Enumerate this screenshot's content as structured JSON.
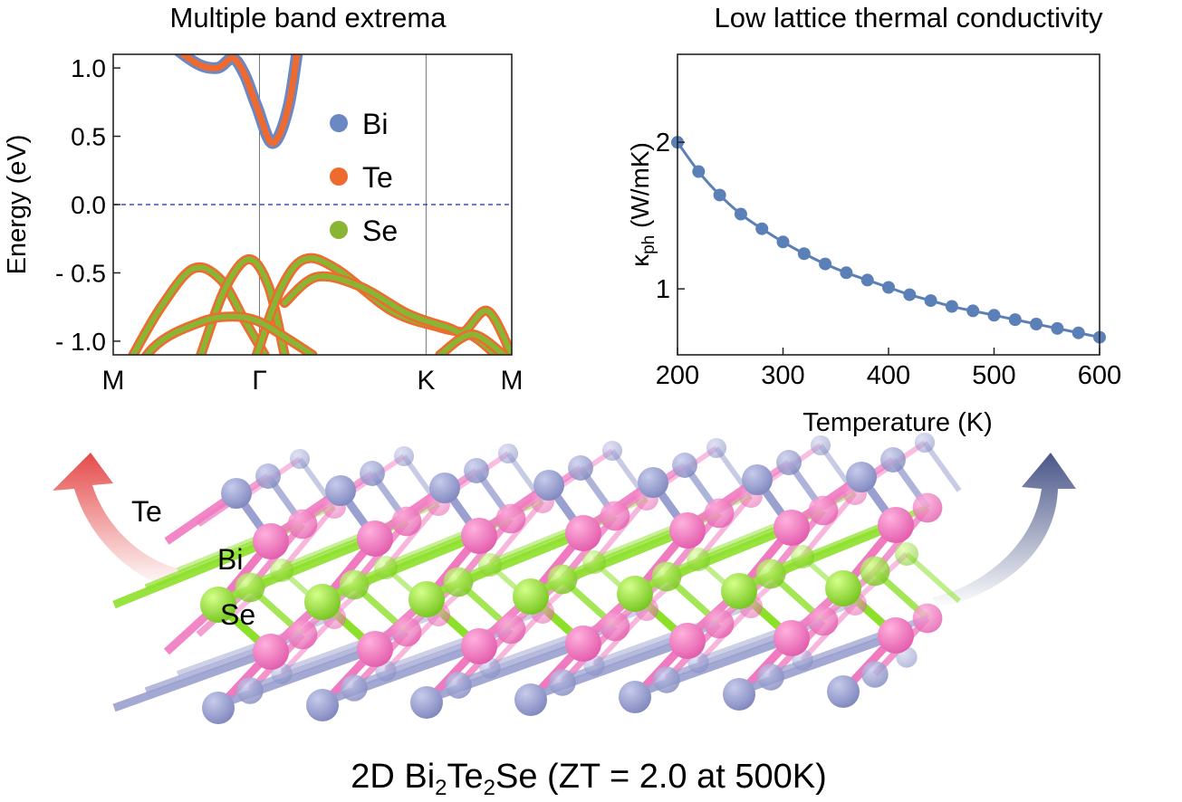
{
  "colors": {
    "left_title": "#c8312f",
    "right_title": "#4a5688",
    "bi": "#6b88c4",
    "te": "#ef6a2f",
    "se": "#8ab534",
    "fermi": "#3b4bd8",
    "kappa_line": "#5b7fb7",
    "atom_te": "#9aa0cf",
    "atom_bi": "#f07ac0",
    "atom_se": "#8de02a"
  },
  "chart_data": [
    {
      "type": "line",
      "title": "Multiple band extrema",
      "xlabel": "",
      "ylabel": "Energy (eV)",
      "ylim": [
        -1.1,
        1.1
      ],
      "yticks": [
        1.0,
        0.5,
        0.0,
        -0.5,
        -1.0
      ],
      "ytick_labels": [
        "1.0",
        "0.5",
        "0.0",
        "- 0.5",
        "- 1.0"
      ],
      "x_points": [
        "M",
        "Γ",
        "K",
        "M"
      ],
      "fermi_level": 0.0,
      "legend": {
        "placement": "top-right",
        "entries": [
          "Bi",
          "Te",
          "Se"
        ]
      },
      "conduction_band": {
        "name": "Bi",
        "x": [
          0.0,
          0.1,
          0.2,
          0.26,
          0.3,
          0.33,
          0.36,
          0.4,
          0.44,
          0.47
        ],
        "y": [
          1.7,
          1.3,
          1.05,
          1.0,
          1.07,
          0.95,
          0.72,
          0.45,
          0.72,
          1.3
        ]
      },
      "valence_bands": [
        {
          "x": [
            0.05,
            0.12,
            0.2,
            0.27,
            0.33,
            0.38
          ],
          "y": [
            -1.1,
            -0.75,
            -0.47,
            -0.55,
            -0.85,
            -1.1
          ]
        },
        {
          "x": [
            0.22,
            0.28,
            0.34,
            0.39,
            0.43
          ],
          "y": [
            -1.1,
            -0.62,
            -0.4,
            -0.6,
            -1.1
          ]
        },
        {
          "x": [
            0.36,
            0.42,
            0.48,
            0.56,
            0.7,
            0.82,
            0.9,
            0.96
          ],
          "y": [
            -1.1,
            -0.62,
            -0.4,
            -0.47,
            -0.78,
            -0.9,
            -0.96,
            -1.1
          ]
        },
        {
          "x": [
            0.43,
            0.51,
            0.62,
            0.74,
            0.84,
            0.88,
            0.94,
            1.0
          ],
          "y": [
            -0.72,
            -0.53,
            -0.6,
            -0.8,
            -0.9,
            -0.93,
            -0.78,
            -1.1
          ]
        },
        {
          "x": [
            0.0,
            0.1,
            0.22,
            0.3,
            0.36,
            0.42,
            0.5
          ],
          "y": [
            -1.5,
            -1.05,
            -0.86,
            -0.82,
            -0.85,
            -0.95,
            -1.1
          ]
        },
        {
          "x": [
            0.82,
            0.9,
            0.98
          ],
          "y": [
            -1.1,
            -0.95,
            -1.1
          ]
        }
      ]
    },
    {
      "type": "line",
      "title": "Low lattice thermal conductivity",
      "xlabel": "Temperature (K)",
      "ylabel_main": "κ",
      "ylabel_sub": "ph",
      "ylabel_unit": " (W/mK)",
      "xlim": [
        200,
        600
      ],
      "ylim": [
        0.55,
        2.6
      ],
      "xticks": [
        200,
        300,
        400,
        500,
        600
      ],
      "yticks": [
        1,
        2
      ],
      "x": [
        200,
        220,
        240,
        260,
        280,
        300,
        320,
        340,
        360,
        380,
        400,
        420,
        440,
        460,
        480,
        500,
        520,
        540,
        560,
        580,
        600
      ],
      "y": [
        2.0,
        1.8,
        1.64,
        1.51,
        1.41,
        1.32,
        1.24,
        1.17,
        1.11,
        1.06,
        1.01,
        0.96,
        0.92,
        0.88,
        0.85,
        0.82,
        0.79,
        0.76,
        0.73,
        0.7,
        0.67
      ]
    }
  ],
  "structure": {
    "labels": [
      "Te",
      "Bi",
      "Se"
    ]
  },
  "caption": {
    "prefix": "2D Bi",
    "sub1": "2",
    "mid": "Te",
    "sub2": "2",
    "suffix": "Se (ZT = 2.0 at 500K)"
  }
}
